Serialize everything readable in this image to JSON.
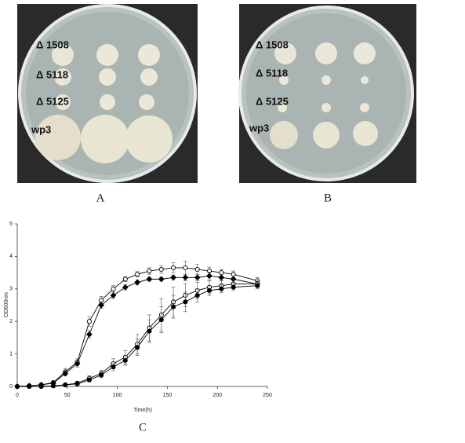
{
  "panel_a": {
    "label": "A",
    "rows": [
      "Δ 1508",
      "Δ 5118",
      "Δ 5125",
      "wp3"
    ]
  },
  "panel_b": {
    "label": "B",
    "rows": [
      "Δ 1508",
      "Δ 5118",
      "Δ 5125",
      "wp3"
    ]
  },
  "chart_data": {
    "type": "line",
    "label": "C",
    "x_label": "Time(h)",
    "y_label": "OD600nm",
    "x": [
      0,
      12,
      24,
      36,
      48,
      60,
      72,
      84,
      96,
      108,
      120,
      132,
      144,
      156,
      168,
      180,
      192,
      204,
      216,
      240
    ],
    "series": [
      {
        "marker": "open-circle",
        "color": "#000000",
        "values": [
          0,
          0.02,
          0.05,
          0.12,
          0.45,
          0.75,
          2.0,
          2.65,
          3.0,
          3.3,
          3.45,
          3.55,
          3.6,
          3.65,
          3.65,
          3.6,
          3.55,
          3.5,
          3.45,
          3.25
        ],
        "errors": [
          0.02,
          0.02,
          0.03,
          0.05,
          0.1,
          0.1,
          0.15,
          0.12,
          0.1,
          0.08,
          0.08,
          0.1,
          0.12,
          0.15,
          0.2,
          0.15,
          0.12,
          0.1,
          0.1,
          0.1
        ]
      },
      {
        "marker": "filled-diamond",
        "color": "#000000",
        "values": [
          0,
          0.02,
          0.05,
          0.1,
          0.4,
          0.7,
          1.6,
          2.5,
          2.8,
          3.05,
          3.2,
          3.3,
          3.3,
          3.35,
          3.35,
          3.35,
          3.4,
          3.35,
          3.3,
          3.15
        ],
        "errors": [
          0.02,
          0.02,
          0.03,
          0.05,
          0.08,
          0.1,
          0.12,
          0.1,
          0.1,
          0.08,
          0.08,
          0.06,
          0.06,
          0.08,
          0.1,
          0.1,
          0.12,
          0.1,
          0.1,
          0.08
        ]
      },
      {
        "marker": "open-circle",
        "color": "#000000",
        "values": [
          0,
          0,
          0,
          0.02,
          0.05,
          0.1,
          0.25,
          0.4,
          0.7,
          0.9,
          1.3,
          1.8,
          2.2,
          2.6,
          2.8,
          2.95,
          3.05,
          3.1,
          3.15,
          3.15
        ],
        "errors": [
          0.01,
          0.01,
          0.01,
          0.02,
          0.03,
          0.05,
          0.08,
          0.1,
          0.15,
          0.2,
          0.3,
          0.4,
          0.5,
          0.45,
          0.35,
          0.25,
          0.2,
          0.15,
          0.12,
          0.1
        ]
      },
      {
        "marker": "filled-circle",
        "color": "#000000",
        "values": [
          0,
          0,
          0,
          0.02,
          0.05,
          0.08,
          0.2,
          0.35,
          0.6,
          0.8,
          1.2,
          1.7,
          2.05,
          2.45,
          2.6,
          2.8,
          2.95,
          3.0,
          3.05,
          3.1
        ],
        "errors": [
          0.01,
          0.01,
          0.01,
          0.02,
          0.03,
          0.04,
          0.06,
          0.08,
          0.12,
          0.15,
          0.25,
          0.35,
          0.4,
          0.35,
          0.3,
          0.2,
          0.15,
          0.12,
          0.1,
          0.1
        ]
      }
    ],
    "xlim": [
      0,
      250
    ],
    "xticks": [
      0,
      50,
      100,
      150,
      200,
      250
    ],
    "ylim": [
      0,
      5
    ],
    "yticks": [
      0,
      1,
      2,
      3,
      4,
      5
    ]
  }
}
